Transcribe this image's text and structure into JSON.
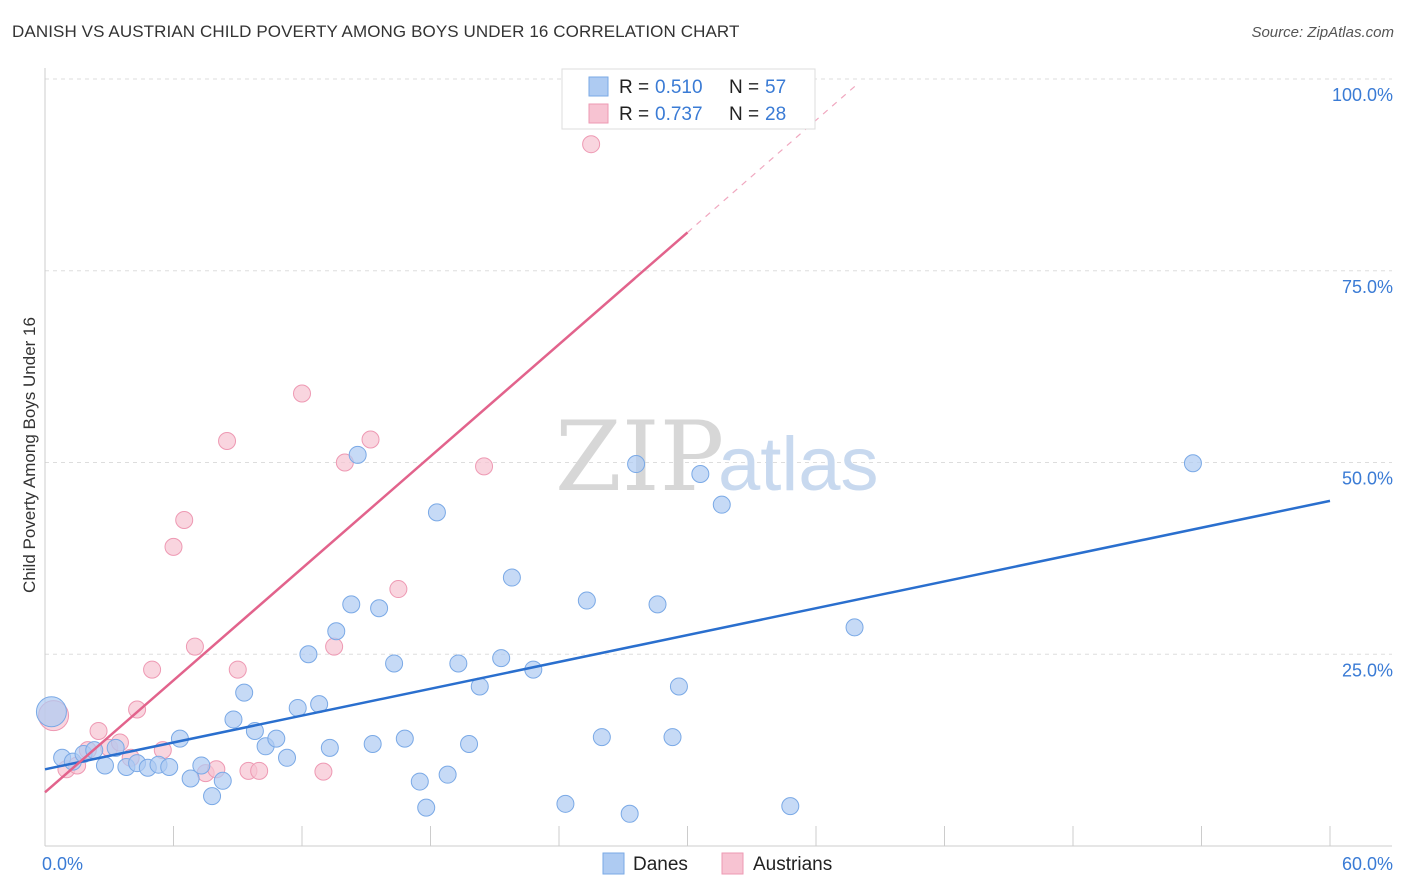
{
  "title": "DANISH VS AUSTRIAN CHILD POVERTY AMONG BOYS UNDER 16 CORRELATION CHART",
  "source": "Source: ZipAtlas.com",
  "watermark": {
    "zip": "ZIP",
    "atlas": "atlas"
  },
  "legend": {
    "danes": {
      "r_label": "R = ",
      "r_value": "0.510",
      "n_label": "N = ",
      "n_value": "57"
    },
    "austrians": {
      "r_label": "R = ",
      "r_value": "0.737",
      "n_label": "N = ",
      "n_value": "28"
    }
  },
  "colors": {
    "danes_fill": "#aecbf2",
    "danes_stroke": "#7aa9e6",
    "danes_line": "#2a6fce",
    "austrians_fill": "#f7c3d2",
    "austrians_stroke": "#ee99b3",
    "austrians_line": "#e2638c",
    "tick": "#3a7bd5",
    "grid": "#dddddd"
  },
  "chart_data": {
    "type": "scatter",
    "ylabel": "Child Poverty Among Boys Under 16",
    "xlim": [
      0,
      60
    ],
    "ylim": [
      0,
      100
    ],
    "x_tick_labels": [
      {
        "value": 0,
        "label": "0.0%"
      },
      {
        "value": 60,
        "label": "60.0%"
      }
    ],
    "y_tick_labels": [
      {
        "value": 25,
        "label": "25.0%"
      },
      {
        "value": 50,
        "label": "50.0%"
      },
      {
        "value": 75,
        "label": "75.0%"
      },
      {
        "value": 100,
        "label": "100.0%"
      }
    ],
    "grid": true,
    "legend_position": "top-center",
    "series": [
      {
        "name": "Danes",
        "points": [
          [
            0.3,
            17.5
          ],
          [
            0.8,
            11.5
          ],
          [
            1.3,
            11.0
          ],
          [
            1.8,
            12.0
          ],
          [
            2.3,
            12.5
          ],
          [
            2.8,
            10.5
          ],
          [
            3.3,
            12.8
          ],
          [
            3.8,
            10.3
          ],
          [
            4.3,
            10.8
          ],
          [
            4.8,
            10.2
          ],
          [
            5.3,
            10.6
          ],
          [
            5.8,
            10.3
          ],
          [
            6.3,
            14.0
          ],
          [
            6.8,
            8.8
          ],
          [
            7.3,
            10.5
          ],
          [
            7.8,
            6.5
          ],
          [
            8.3,
            8.5
          ],
          [
            8.8,
            16.5
          ],
          [
            9.3,
            20.0
          ],
          [
            9.8,
            15.0
          ],
          [
            10.3,
            13.0
          ],
          [
            10.8,
            14.0
          ],
          [
            11.3,
            11.5
          ],
          [
            11.8,
            18.0
          ],
          [
            12.3,
            25.0
          ],
          [
            12.8,
            18.5
          ],
          [
            13.3,
            12.8
          ],
          [
            13.6,
            28.0
          ],
          [
            14.3,
            31.5
          ],
          [
            14.6,
            51.0
          ],
          [
            15.3,
            13.3
          ],
          [
            15.6,
            31.0
          ],
          [
            16.3,
            23.8
          ],
          [
            16.8,
            14.0
          ],
          [
            17.5,
            8.4
          ],
          [
            17.8,
            5.0
          ],
          [
            18.3,
            43.5
          ],
          [
            18.8,
            9.3
          ],
          [
            19.3,
            23.8
          ],
          [
            19.8,
            13.3
          ],
          [
            20.3,
            20.8
          ],
          [
            21.3,
            24.5
          ],
          [
            21.8,
            35.0
          ],
          [
            22.8,
            23.0
          ],
          [
            24.3,
            5.5
          ],
          [
            25.3,
            32.0
          ],
          [
            26.0,
            14.2
          ],
          [
            27.3,
            4.2
          ],
          [
            27.6,
            49.8
          ],
          [
            28.6,
            31.5
          ],
          [
            29.3,
            14.2
          ],
          [
            29.6,
            20.8
          ],
          [
            30.6,
            48.5
          ],
          [
            31.6,
            44.5
          ],
          [
            34.8,
            5.2
          ],
          [
            37.8,
            28.5
          ],
          [
            53.6,
            49.9
          ]
        ],
        "trend": {
          "x": [
            0,
            60
          ],
          "y": [
            10.0,
            45.0
          ]
        }
      },
      {
        "name": "Austrians",
        "points": [
          [
            0.4,
            17.0
          ],
          [
            1.0,
            10.0
          ],
          [
            1.5,
            10.5
          ],
          [
            2.0,
            12.5
          ],
          [
            2.5,
            15.0
          ],
          [
            3.0,
            12.8
          ],
          [
            3.5,
            13.5
          ],
          [
            4.0,
            11.5
          ],
          [
            4.3,
            17.8
          ],
          [
            5.0,
            23.0
          ],
          [
            5.5,
            12.5
          ],
          [
            6.0,
            39.0
          ],
          [
            6.5,
            42.5
          ],
          [
            7.0,
            26.0
          ],
          [
            7.5,
            9.5
          ],
          [
            8.0,
            10.0
          ],
          [
            8.5,
            52.8
          ],
          [
            9.0,
            23.0
          ],
          [
            9.5,
            9.8
          ],
          [
            10.0,
            9.8
          ],
          [
            12.0,
            59.0
          ],
          [
            13.0,
            9.7
          ],
          [
            13.5,
            26.0
          ],
          [
            14.0,
            50.0
          ],
          [
            15.2,
            53.0
          ],
          [
            16.5,
            33.5
          ],
          [
            20.5,
            49.5
          ],
          [
            25.5,
            91.5
          ]
        ],
        "trend": {
          "x": [
            0,
            30
          ],
          "y": [
            7.0,
            80.0
          ]
        },
        "trend_dashed": {
          "x": [
            30,
            38
          ],
          "y": [
            80.0,
            99.5
          ]
        }
      }
    ]
  },
  "bottom_legend": {
    "danes": "Danes",
    "austrians": "Austrians"
  }
}
